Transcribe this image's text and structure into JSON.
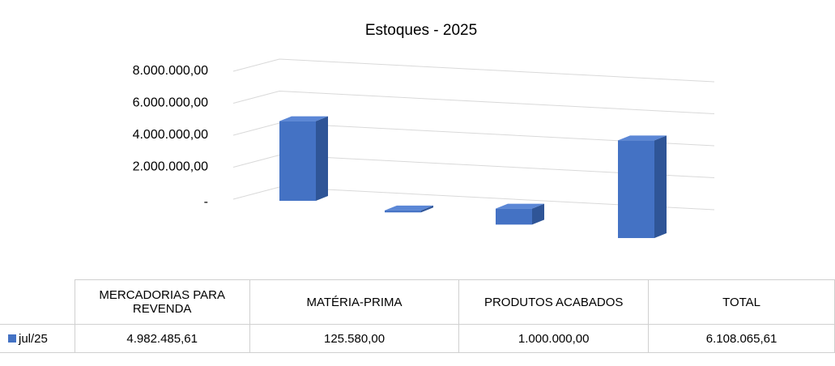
{
  "chart_data": {
    "type": "bar3d",
    "title": "Estoques - 2025",
    "categories": [
      "MERCADORIAS PARA REVENDA",
      "MATÉRIA-PRIMA",
      "PRODUTOS ACABADOS",
      "TOTAL"
    ],
    "series": [
      {
        "name": "jul/25",
        "color": "#4472c4",
        "values": [
          4982485.61,
          125580,
          1000000,
          6108065.61
        ],
        "value_labels": [
          "4.982.485,61",
          "125.580,00",
          "1.000.000,00",
          "6.108.065,61"
        ]
      }
    ],
    "ylim": [
      0,
      8000000
    ],
    "yticks": [
      {
        "value": 0,
        "label": "-"
      },
      {
        "value": 2000000,
        "label": "2.000.000,00"
      },
      {
        "value": 4000000,
        "label": "4.000.000,00"
      },
      {
        "value": 6000000,
        "label": "6.000.000,00"
      },
      {
        "value": 8000000,
        "label": "8.000.000,00"
      }
    ],
    "grid": true
  }
}
